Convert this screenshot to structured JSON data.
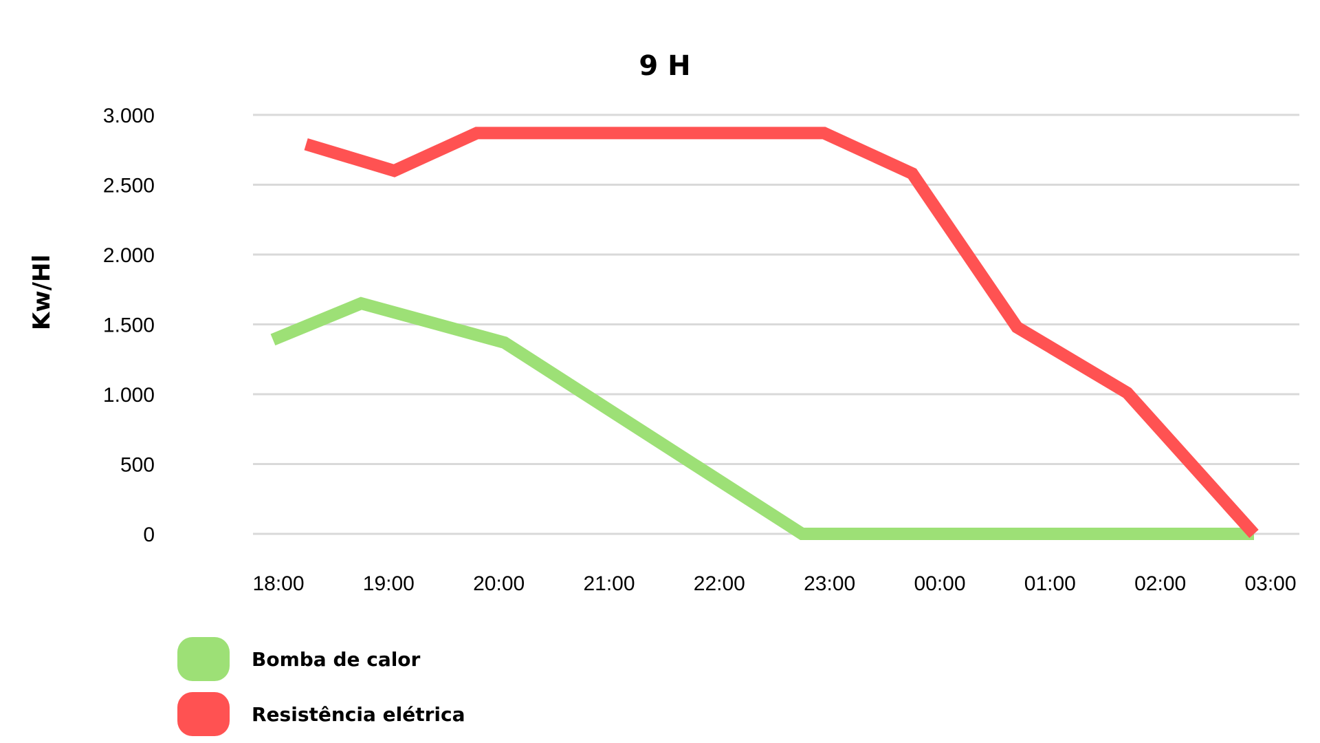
{
  "chart_data": {
    "type": "line",
    "title": "9 H",
    "xlabel": "",
    "ylabel": "Kw/Hl",
    "categories": [
      "18:00",
      "19:00",
      "20:00",
      "21:00",
      "22:00",
      "23:00",
      "00:00",
      "01:00",
      "02:00",
      "03:00"
    ],
    "ylim": [
      0,
      3000
    ],
    "yticks": [
      0,
      500,
      1000,
      1500,
      2000,
      2500,
      3000
    ],
    "ytick_labels": [
      "0",
      "500",
      "1.000",
      "1.500",
      "2.000",
      "2.500",
      "3.000"
    ],
    "grid": true,
    "legend_position": "bottom-left",
    "series": [
      {
        "name": "Bomba de calor",
        "color": "#9de076",
        "points": [
          {
            "x": 17.95,
            "y": 1390
          },
          {
            "x": 18.75,
            "y": 1650
          },
          {
            "x": 20.05,
            "y": 1370
          },
          {
            "x": 22.75,
            "y": 0
          },
          {
            "x": 26.85,
            "y": 0
          }
        ]
      },
      {
        "name": "Resistência elétrica",
        "color": "#ff5252",
        "points": [
          {
            "x": 18.25,
            "y": 2790
          },
          {
            "x": 19.05,
            "y": 2600
          },
          {
            "x": 19.8,
            "y": 2870
          },
          {
            "x": 22.95,
            "y": 2870
          },
          {
            "x": 23.75,
            "y": 2580
          },
          {
            "x": 24.7,
            "y": 1480
          },
          {
            "x": 25.7,
            "y": 1010
          },
          {
            "x": 26.85,
            "y": 0
          }
        ]
      }
    ]
  }
}
